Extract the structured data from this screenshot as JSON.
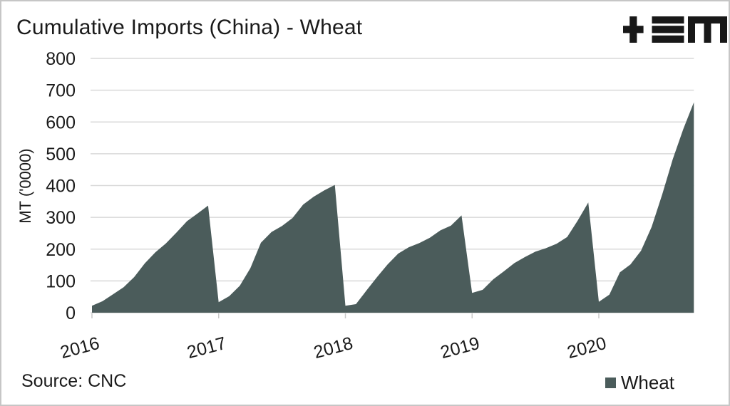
{
  "page": {
    "source_label": "Source: CNC",
    "logo_name": "TEM logo"
  },
  "chart_data": {
    "type": "area",
    "title": "Cumulative Imports (China) - Wheat",
    "xlabel": "",
    "ylabel": "MT ('0000)",
    "ylim": [
      0,
      800
    ],
    "yticks": [
      0,
      100,
      200,
      300,
      400,
      500,
      600,
      700,
      800
    ],
    "x_year_labels": [
      "2016",
      "2017",
      "2018",
      "2019",
      "2020"
    ],
    "grid": "horizontal",
    "legend": {
      "label": "Wheat",
      "position": "bottom-right"
    },
    "colors": {
      "area": "#4b5c5b",
      "grid": "#d9d9d9",
      "tick": "#c9c9c9",
      "text": "#1a1a1a",
      "logo": "#181818"
    },
    "series": [
      {
        "name": "Wheat",
        "pattern": "cumulative within each year, resets every January",
        "years": [
          {
            "year": "2016",
            "monthly_cumulative": [
              22,
              36,
              58,
              80,
              112,
              155,
              190,
              218,
              252,
              288,
              312,
              337
            ]
          },
          {
            "year": "2017",
            "monthly_cumulative": [
              33,
              52,
              85,
              140,
              220,
              254,
              273,
              298,
              340,
              365,
              385,
              402
            ]
          },
          {
            "year": "2018",
            "monthly_cumulative": [
              22,
              27,
              70,
              112,
              152,
              186,
              206,
              219,
              236,
              259,
              274,
              306
            ]
          },
          {
            "year": "2019",
            "monthly_cumulative": [
              62,
              72,
              105,
              130,
              156,
              175,
              192,
              203,
              217,
              238,
              290,
              347
            ]
          },
          {
            "year": "2020",
            "monthly_cumulative": [
              34,
              57,
              127,
              152,
              195,
              270,
              372,
              483,
              578,
              662
            ]
          }
        ]
      }
    ]
  }
}
